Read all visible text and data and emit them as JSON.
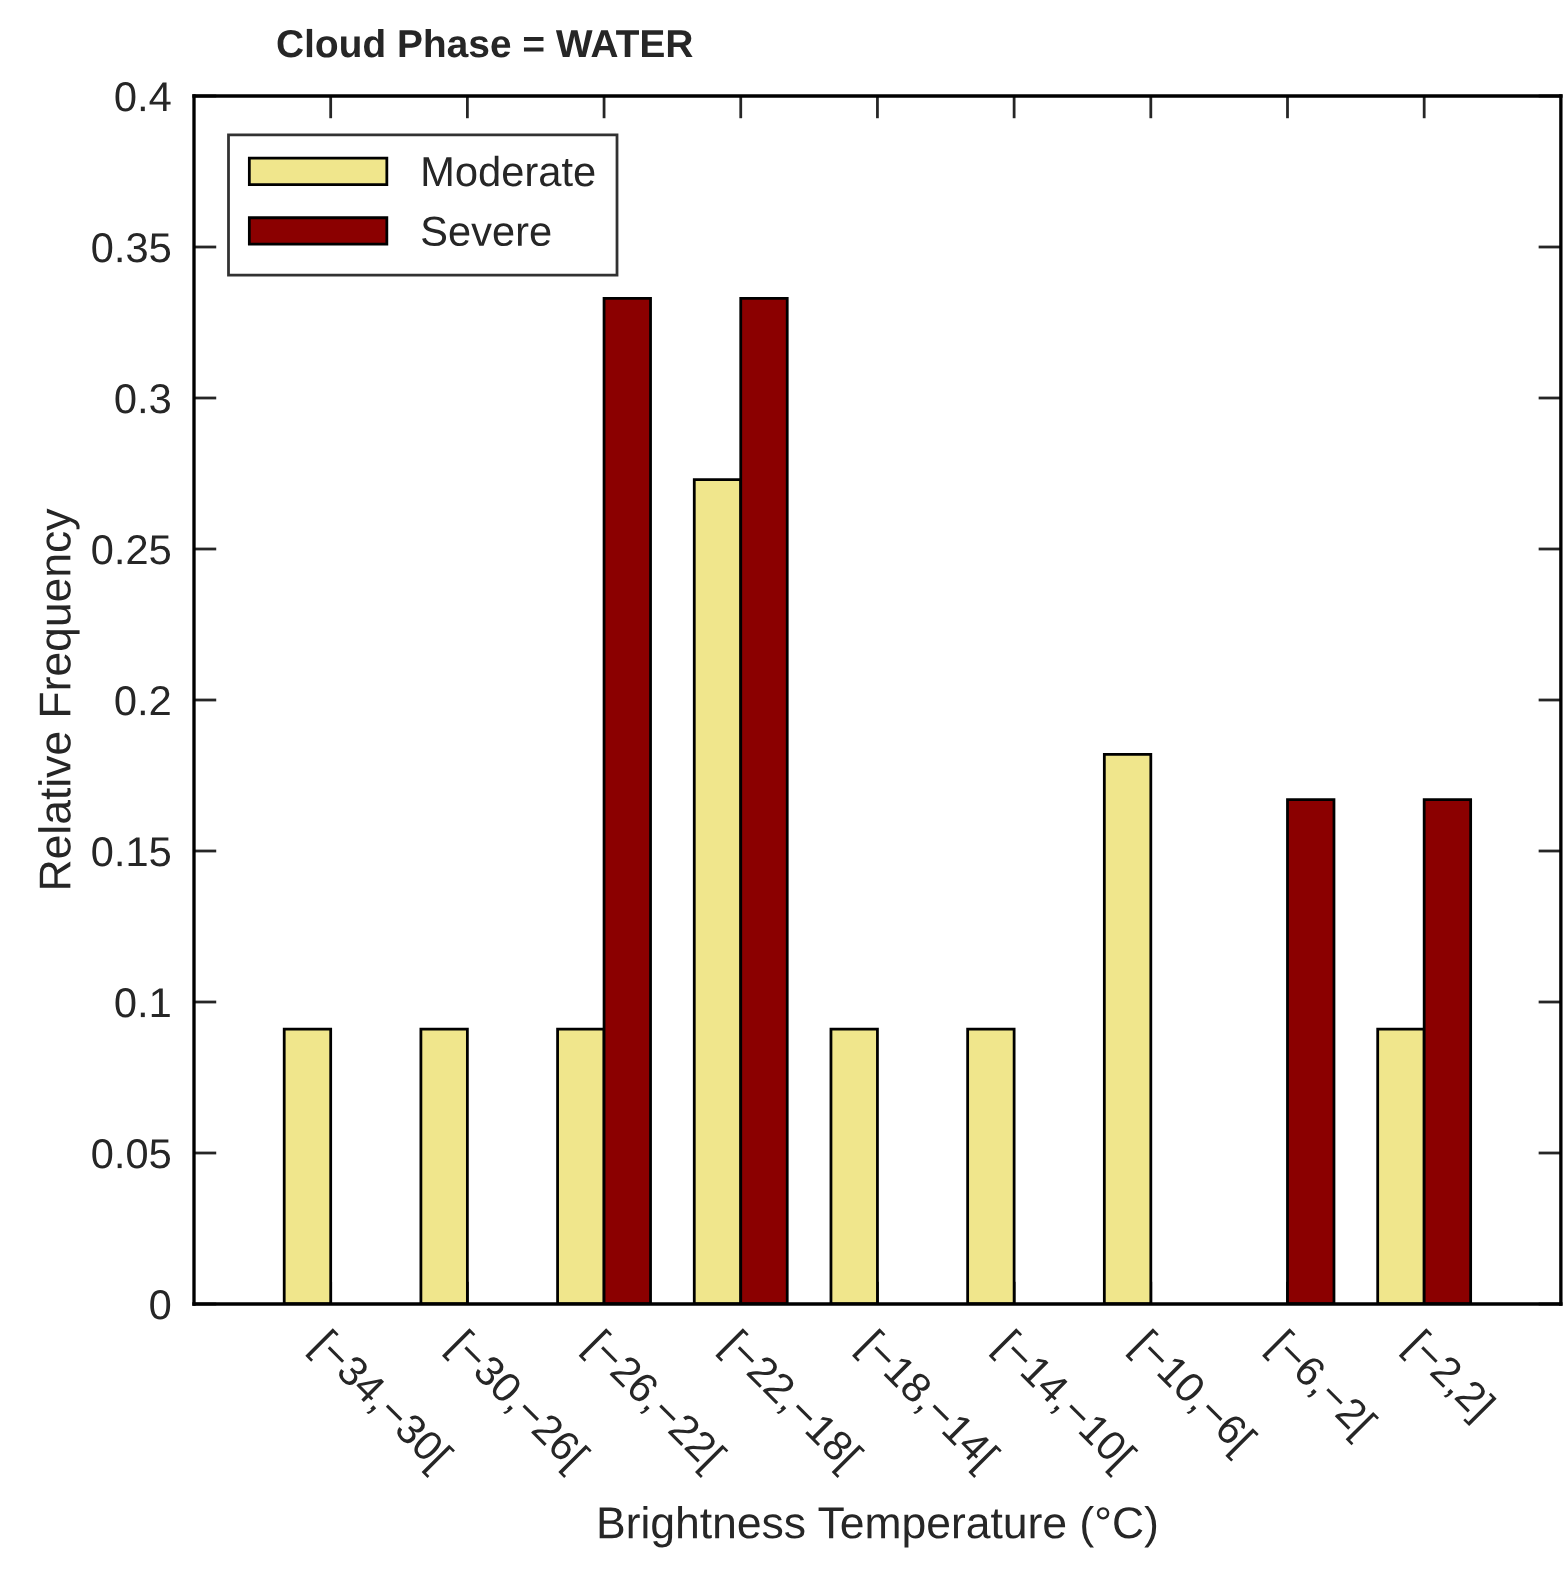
{
  "chart_data": {
    "type": "bar",
    "title": "Cloud Phase = WATER",
    "xlabel": "Brightness Temperature (°C)",
    "ylabel": "Relative Frequency",
    "categories": [
      "[−34,−30[",
      "[−30,−26[",
      "[−26,−22[",
      "[−22,−18[",
      "[−18,−14[",
      "[−14,−10[",
      "[−10,−6[",
      "[−6,−2[",
      "[−2,2]"
    ],
    "series": [
      {
        "name": "Moderate",
        "color": "#f0e68c",
        "values": [
          0.091,
          0.091,
          0.091,
          0.273,
          0.091,
          0.091,
          0.182,
          null,
          0.091
        ]
      },
      {
        "name": "Severe",
        "color": "#8b0000",
        "values": [
          null,
          null,
          0.333,
          0.333,
          null,
          null,
          null,
          0.167,
          0.167
        ]
      }
    ],
    "ylim": [
      0,
      0.4
    ],
    "yticks": [
      0,
      0.05,
      0.1,
      0.15,
      0.2,
      0.25,
      0.3,
      0.35,
      0.4
    ],
    "grid": false,
    "legend": "top left"
  }
}
